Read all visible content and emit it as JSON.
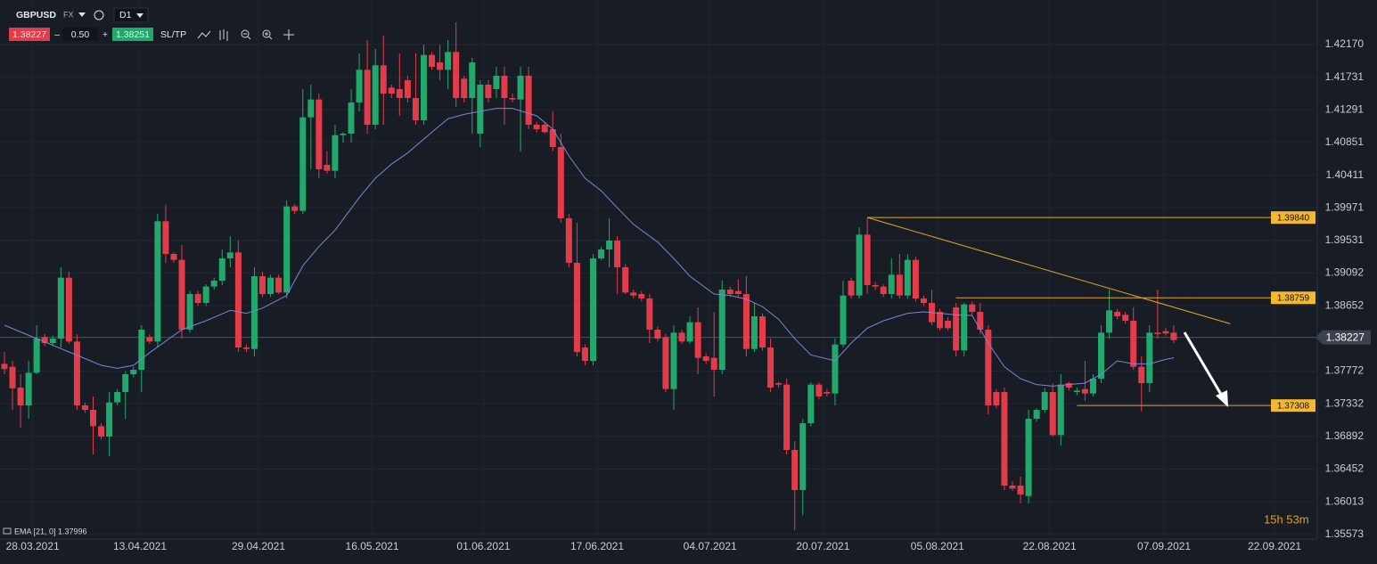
{
  "toolbar": {
    "symbol": "GBPUSD",
    "market": "FX",
    "timeframe": "D1",
    "sell_price": "1.38227",
    "minus": "–",
    "spread": "0.50",
    "plus": "+",
    "buy_price": "1.38251",
    "sl_tp": "SL/TP"
  },
  "chart_data": {
    "type": "candlestick",
    "open": [
      1.3787,
      1.3783,
      1.3755,
      1.3731,
      1.3775,
      1.3823,
      1.3815,
      1.3821,
      1.3903,
      1.3817,
      1.3731,
      1.3725,
      1.3703,
      1.3689,
      1.3735,
      1.3749,
      1.3773,
      1.3779,
      1.3823,
      1.3817,
      1.3979,
      1.3935,
      1.3927,
      1.3833,
      1.3881,
      1.3869,
      1.3891,
      1.3899,
      1.3929,
      1.3937,
      1.3809,
      1.3807,
      1.3905,
      1.3881,
      1.3903,
      1.3883,
      1.3999,
      1.3993,
      1.4119,
      1.4143,
      1.4055,
      1.4047,
      1.4095,
      1.4097,
      1.4139,
      1.4183,
      1.4109,
      1.4189,
      1.4159,
      1.4157,
      1.4169,
      1.4145,
      1.4115,
      1.4203,
      1.4193,
      1.4183,
      1.4207,
      1.4171,
      1.4145,
      1.4097,
      1.4163,
      1.4157,
      1.4175,
      1.4145,
      1.4143,
      1.4175,
      1.4109,
      1.4109,
      1.4103,
      1.4079,
      1.3983,
      1.3923,
      1.3809,
      1.3791,
      1.3929,
      1.3941,
      1.3953,
      1.3917,
      1.3883,
      1.3881,
      1.3875,
      1.3833,
      1.3823,
      1.3753,
      1.3829,
      1.3817,
      1.3843,
      1.3797,
      1.3795,
      1.3779,
      1.3887,
      1.3885,
      1.3881,
      1.3807,
      1.3851,
      1.3809,
      1.3761,
      1.3759,
      1.3671,
      1.3617,
      1.3707,
      1.3759,
      1.3749,
      1.3747,
      1.3813,
      1.3899,
      1.3879,
      1.3961,
      1.3893,
      1.3891,
      1.3881,
      1.3907,
      1.3879,
      1.3927,
      1.3875,
      1.3869,
      1.3857,
      1.3845,
      1.3863,
      1.3805,
      1.3867,
      1.3857,
      1.3833,
      1.3749,
      1.3749,
      1.3623,
      1.3623,
      1.3609,
      1.3713,
      1.3725,
      1.3749,
      1.3691,
      1.3761,
      1.3749,
      1.3753,
      1.3747,
      1.3767,
      1.3829,
      1.3857,
      1.3853,
      1.3845,
      1.3783,
      1.3761,
      1.3829,
      1.3831,
      1.3829
    ],
    "high": [
      1.3803,
      1.3791,
      1.3773,
      1.3791,
      1.3839,
      1.3827,
      1.3825,
      1.3917,
      1.3911,
      1.3827,
      1.3735,
      1.3743,
      1.3707,
      1.3749,
      1.3753,
      1.3777,
      1.3783,
      1.3839,
      1.3827,
      1.3989,
      1.4002,
      1.3937,
      1.3947,
      1.3885,
      1.3885,
      1.3894,
      1.3903,
      1.3941,
      1.3959,
      1.3953,
      1.3813,
      1.3917,
      1.3911,
      1.3907,
      1.3907,
      1.4007,
      1.4002,
      1.4157,
      1.4163,
      1.4151,
      1.4073,
      1.4109,
      1.4099,
      1.4157,
      1.4205,
      1.4223,
      1.4211,
      1.4229,
      1.4163,
      1.4205,
      1.4175,
      1.4205,
      1.4217,
      1.4207,
      1.4217,
      1.4223,
      1.4247,
      1.4175,
      1.4199,
      1.4169,
      1.4169,
      1.4187,
      1.4187,
      1.4151,
      1.4187,
      1.4187,
      1.4113,
      1.4113,
      1.4127,
      1.4097,
      1.3989,
      1.3977,
      1.3813,
      1.3935,
      1.3945,
      1.3983,
      1.3959,
      1.3921,
      1.3887,
      1.3885,
      1.3881,
      1.3837,
      1.3827,
      1.3839,
      1.3833,
      1.3851,
      1.3863,
      1.3801,
      1.3857,
      1.3899,
      1.3891,
      1.3901,
      1.3905,
      1.3869,
      1.3855,
      1.3821,
      1.3763,
      1.3767,
      1.3683,
      1.3713,
      1.3762,
      1.3762,
      1.3753,
      1.3821,
      1.3899,
      1.3903,
      1.3971,
      1.3983,
      1.3897,
      1.3894,
      1.3929,
      1.3935,
      1.3935,
      1.3931,
      1.3879,
      1.3887,
      1.3861,
      1.385,
      1.3869,
      1.3869,
      1.3871,
      1.3869,
      1.3839,
      1.3753,
      1.3755,
      1.3629,
      1.3635,
      1.3725,
      1.3727,
      1.3755,
      1.3761,
      1.3773,
      1.3763,
      1.3755,
      1.3791,
      1.3773,
      1.3839,
      1.3887,
      1.3861,
      1.3857,
      1.3863,
      1.3797,
      1.3839,
      1.3887,
      1.3835,
      1.3839
    ],
    "low": [
      1.3773,
      1.3725,
      1.3701,
      1.3713,
      1.3773,
      1.3811,
      1.3811,
      1.3809,
      1.3814,
      1.3725,
      1.3721,
      1.3665,
      1.3685,
      1.3663,
      1.3731,
      1.3713,
      1.3769,
      1.3749,
      1.3814,
      1.3809,
      1.3923,
      1.3923,
      1.3821,
      1.3829,
      1.3865,
      1.3865,
      1.3887,
      1.3893,
      1.3917,
      1.3803,
      1.3803,
      1.3797,
      1.3877,
      1.3877,
      1.3881,
      1.3875,
      1.3989,
      1.3989,
      1.4049,
      1.4037,
      1.4043,
      1.4037,
      1.4085,
      1.4085,
      1.4127,
      1.4097,
      1.4103,
      1.4109,
      1.4145,
      1.4121,
      1.4139,
      1.4109,
      1.4109,
      1.4183,
      1.4169,
      1.4157,
      1.4133,
      1.4139,
      1.4097,
      1.4079,
      1.4139,
      1.4145,
      1.4109,
      1.4139,
      1.4073,
      1.4103,
      1.4099,
      1.4097,
      1.4073,
      1.3977,
      1.3917,
      1.3797,
      1.3785,
      1.3785,
      1.3927,
      1.3917,
      1.3881,
      1.3881,
      1.3875,
      1.3871,
      1.3815,
      1.3817,
      1.3749,
      1.3725,
      1.3814,
      1.3814,
      1.3773,
      1.3787,
      1.3743,
      1.3773,
      1.3877,
      1.3877,
      1.3797,
      1.3803,
      1.3805,
      1.3749,
      1.3755,
      1.3665,
      1.3563,
      1.3583,
      1.3703,
      1.3739,
      1.3743,
      1.3731,
      1.3809,
      1.3875,
      1.3875,
      1.3881,
      1.3887,
      1.3877,
      1.3875,
      1.3875,
      1.3875,
      1.3871,
      1.3865,
      1.3839,
      1.3832,
      1.3832,
      1.3797,
      1.3797,
      1.3853,
      1.3827,
      1.3719,
      1.3727,
      1.3617,
      1.3616,
      1.3599,
      1.3599,
      1.3709,
      1.3721,
      1.3689,
      1.3677,
      1.3751,
      1.3745,
      1.3737,
      1.3743,
      1.3761,
      1.3821,
      1.3847,
      1.3841,
      1.3779,
      1.3723,
      1.3749,
      1.3821,
      1.3825,
      1.3815
    ],
    "close": [
      1.378,
      1.3754,
      1.3731,
      1.3775,
      1.3821,
      1.3815,
      1.3821,
      1.3903,
      1.3817,
      1.3731,
      1.3725,
      1.3703,
      1.3689,
      1.3735,
      1.3749,
      1.3773,
      1.3779,
      1.3833,
      1.3817,
      1.3979,
      1.3935,
      1.3927,
      1.3833,
      1.3881,
      1.3869,
      1.3891,
      1.3899,
      1.3929,
      1.3937,
      1.3809,
      1.3807,
      1.3905,
      1.3881,
      1.3903,
      1.3883,
      1.3999,
      1.3993,
      1.4119,
      1.4143,
      1.4049,
      1.4047,
      1.4095,
      1.4097,
      1.4139,
      1.4183,
      1.4109,
      1.4189,
      1.4151,
      1.4151,
      1.4145,
      1.4145,
      1.4115,
      1.4203,
      1.4187,
      1.4183,
      1.4207,
      1.4145,
      1.4145,
      1.4193,
      1.4163,
      1.4145,
      1.4175,
      1.4145,
      1.4143,
      1.4175,
      1.4109,
      1.4103,
      1.4099,
      1.4079,
      1.3983,
      1.3923,
      1.3803,
      1.3791,
      1.3929,
      1.3941,
      1.3953,
      1.3917,
      1.3883,
      1.3879,
      1.3875,
      1.3833,
      1.3821,
      1.3753,
      1.3829,
      1.3817,
      1.3843,
      1.3795,
      1.3791,
      1.3779,
      1.3887,
      1.3881,
      1.3881,
      1.3807,
      1.3851,
      1.3809,
      1.3755,
      1.3759,
      1.3671,
      1.3617,
      1.3707,
      1.3759,
      1.3743,
      1.3747,
      1.3813,
      1.3879,
      1.3879,
      1.3961,
      1.3893,
      1.3891,
      1.3881,
      1.3907,
      1.3879,
      1.3927,
      1.3875,
      1.3869,
      1.3843,
      1.3835,
      1.3835,
      1.3805,
      1.3867,
      1.3857,
      1.3833,
      1.3731,
      1.3731,
      1.3623,
      1.3619,
      1.3611,
      1.3713,
      1.3725,
      1.3749,
      1.3691,
      1.3759,
      1.3755,
      1.3751,
      1.3747,
      1.3767,
      1.3829,
      1.3859,
      1.3851,
      1.3845,
      1.3783,
      1.3761,
      1.3829,
      1.3827,
      1.3828,
      1.3819
    ],
    "up_color": "#22a86b",
    "down_color": "#e23c4b",
    "xlim": [
      -0.55,
      162.8
    ],
    "ylim": [
      1.3551,
      1.4277
    ],
    "yticks": [
      {
        "value": 1.4217,
        "label": "1.42170"
      },
      1.41731,
      1.41291,
      1.40851,
      1.40411,
      1.39971,
      1.39531,
      1.39092,
      1.38652,
      1.37772,
      1.37332,
      1.36892,
      1.36452,
      1.36013,
      1.35573
    ],
    "xticks": [
      {
        "value": 3.5,
        "label": "28.03.2021"
      },
      {
        "value": 16.8,
        "label": "13.04.2021"
      },
      {
        "value": 31.5,
        "label": "29.04.2021"
      },
      {
        "value": 45.6,
        "label": "16.05.2021"
      },
      {
        "value": 59.4,
        "label": "01.06.2021"
      },
      {
        "value": 73.5,
        "label": "17.06.2021"
      },
      {
        "value": 87.5,
        "label": "04.07.2021"
      },
      {
        "value": 101.5,
        "label": "20.07.2021"
      },
      {
        "value": 115.7,
        "label": "05.08.2021"
      },
      {
        "value": 129.6,
        "label": "22.08.2021"
      },
      {
        "value": 143.8,
        "label": "07.09.2021"
      },
      {
        "value": 157.5,
        "label": "22.09.2021"
      }
    ],
    "grid": true,
    "ema": {
      "name": "EMA [21, 0] 1.37996",
      "color": "#7f83d6",
      "x": [
        0,
        4,
        8,
        12,
        14,
        16,
        18,
        22,
        25,
        28,
        30,
        32,
        35,
        37,
        39,
        41,
        44,
        46,
        48,
        50,
        53,
        55,
        57,
        59,
        61,
        63,
        66,
        68,
        70,
        72,
        74,
        76,
        78,
        81,
        83,
        85,
        88,
        90,
        92,
        94,
        96,
        98,
        100,
        103,
        105,
        107,
        109,
        112,
        114,
        116,
        118,
        120,
        122,
        124,
        126,
        128,
        130,
        132,
        134,
        136,
        138,
        140,
        142,
        144,
        145
      ],
      "values": [
        1.3839,
        1.3821,
        1.3803,
        1.3785,
        1.3781,
        1.3785,
        1.3802,
        1.3833,
        1.3845,
        1.3859,
        1.3855,
        1.3862,
        1.3879,
        1.3919,
        1.3945,
        1.3967,
        1.4011,
        1.4037,
        1.4056,
        1.4071,
        1.4099,
        1.4117,
        1.4123,
        1.4127,
        1.4131,
        1.4131,
        1.4121,
        1.4103,
        1.4067,
        1.4037,
        1.402,
        1.3997,
        1.3975,
        1.3951,
        1.3929,
        1.3905,
        1.3881,
        1.3879,
        1.3874,
        1.3864,
        1.3847,
        1.3821,
        1.3799,
        1.3791,
        1.3815,
        1.3835,
        1.3845,
        1.3855,
        1.3857,
        1.3855,
        1.3853,
        1.3852,
        1.3815,
        1.3783,
        1.3767,
        1.3759,
        1.3757,
        1.3759,
        1.3761,
        1.3773,
        1.3791,
        1.3787,
        1.3787,
        1.3793,
        1.3795
      ]
    },
    "last_price": 1.38227,
    "levels": [
      {
        "value": 1.3984,
        "label": "1.39840",
        "start": 107
      },
      {
        "value": 1.38759,
        "start": 118
      },
      {
        "value": 1.37308,
        "start": 133
      }
    ],
    "level_color": "#e4a62a",
    "trendline": {
      "x": [
        107,
        152
      ],
      "y": [
        1.3984,
        1.3841
      ]
    },
    "timer": "15h 53m"
  }
}
